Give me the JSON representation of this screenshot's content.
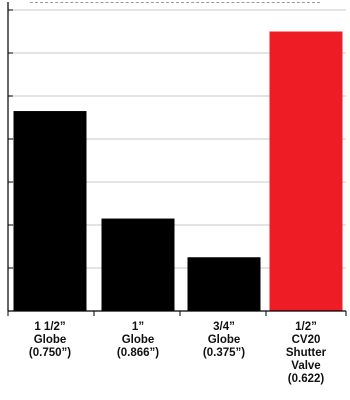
{
  "chart_data": {
    "type": "bar",
    "categories": [
      [
        "1 1/2”",
        "Globe",
        "(0.750”)"
      ],
      [
        "1”",
        "Globe",
        "(0.866”)"
      ],
      [
        "3/4”",
        "Globe",
        "(0.375”)"
      ],
      [
        "1/2”",
        "CV20",
        "Shutter",
        "Valve",
        "(0.622)"
      ]
    ],
    "values": [
      4.65,
      2.15,
      1.25,
      6.5
    ],
    "ylim": [
      0,
      7
    ],
    "grid": true,
    "bar_colors": [
      "#000000",
      "#000000",
      "#000000",
      "#ee1c25"
    ],
    "axis_color": "#000000",
    "grid_color": "#c8c8c8"
  }
}
